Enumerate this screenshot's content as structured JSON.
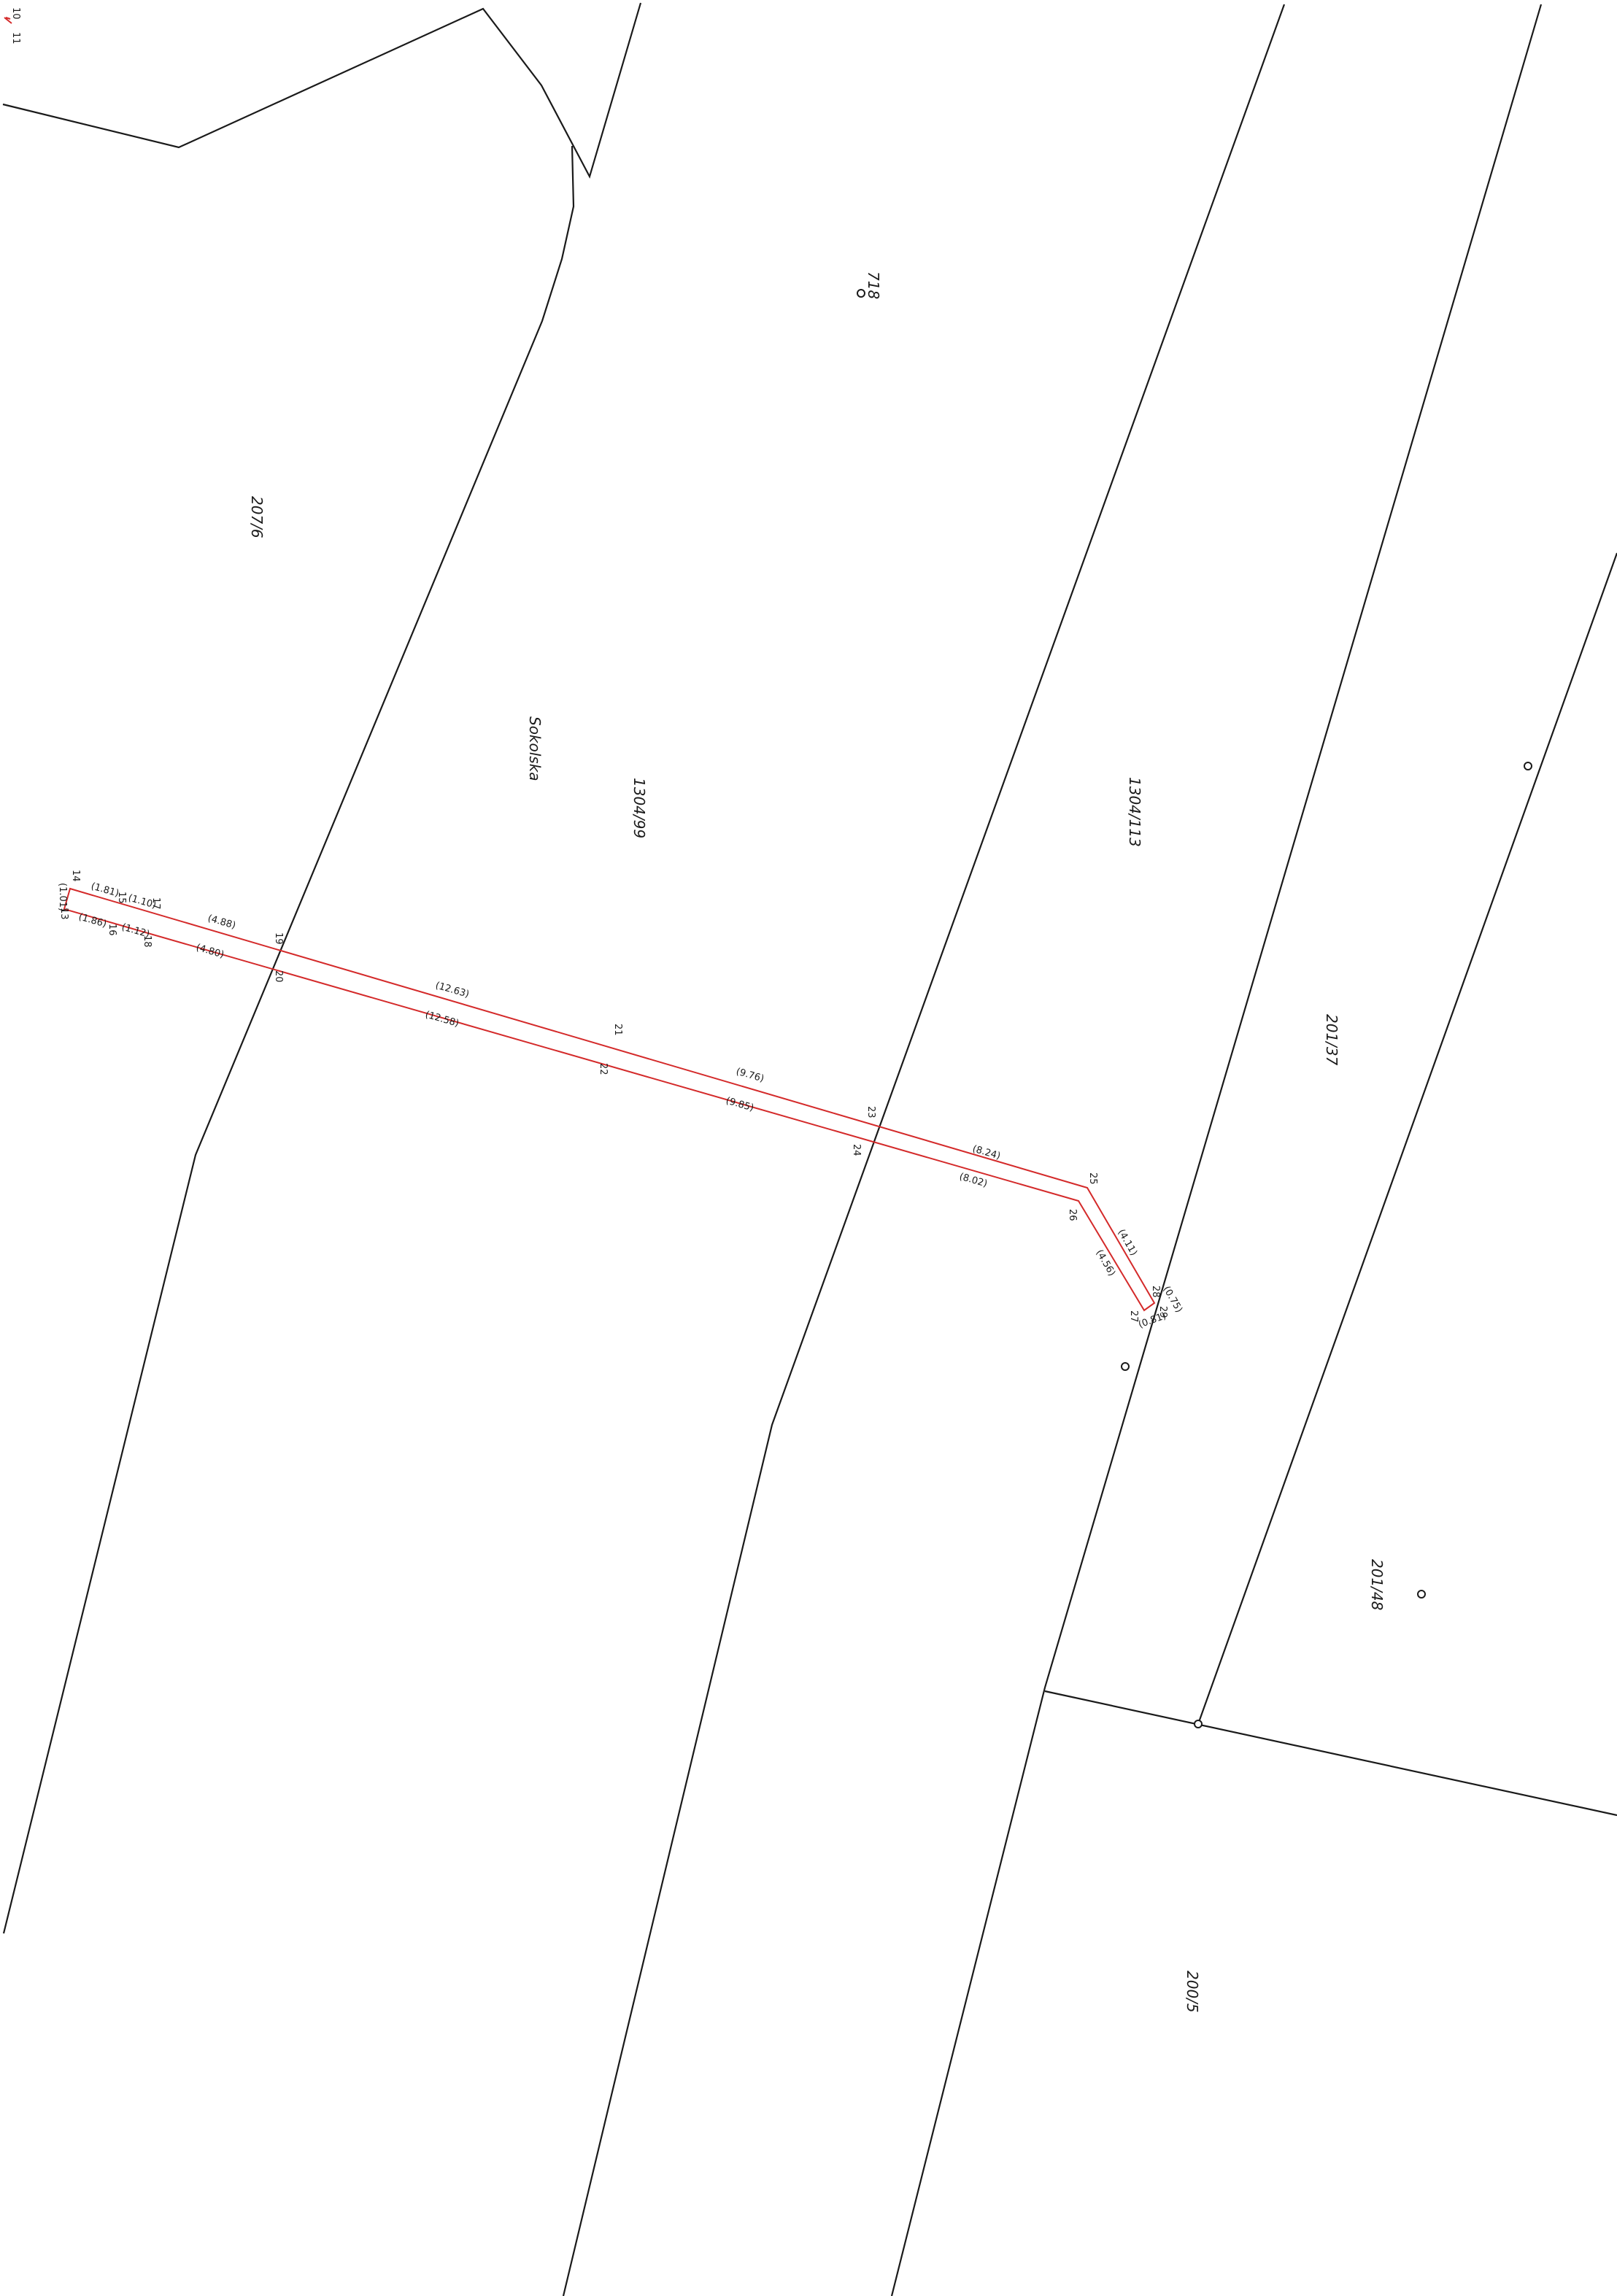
{
  "parcels": {
    "p207_6": "207/6",
    "p718": "718",
    "p1304_99": "1304/99",
    "p1304_113": "1304/113",
    "p201_37": "201/37",
    "p201_48": "201/48",
    "p200_5": "200/5"
  },
  "street": "Sokolska",
  "points": {
    "p11": "11",
    "p13": "13",
    "p14": "14",
    "p15": "15",
    "p16": "16",
    "p17": "17",
    "p18": "18",
    "p19": "19",
    "p20": "20",
    "p21": "21",
    "p22": "22",
    "p23": "23",
    "p24": "24",
    "p25": "25",
    "p26": "26",
    "p27": "27",
    "p28": "28",
    "p29": "29"
  },
  "dims": {
    "d1_81": "(1.81)",
    "d1_10": "(1.10)",
    "d1_86": "(1.86)",
    "d1_12": "(1.12)",
    "d1_01": "(1.01)",
    "d4_88": "(4.88)",
    "d4_80": "(4.80)",
    "d12_63": "(12.63)",
    "d12_58": "(12.58)",
    "d9_76": "(9.76)",
    "d9_85": "(9.85)",
    "d8_24": "(8.24)",
    "d8_02": "(8.02)",
    "d4_11": "(4.11)",
    "d4_56": "(4.56)",
    "d0_75": "(0.75)",
    "d0_81": "(0.81)"
  },
  "corner_marks": [
    "10",
    "11"
  ],
  "colors": {
    "line": "#1a1a1a",
    "strip": "#d42a2a"
  }
}
